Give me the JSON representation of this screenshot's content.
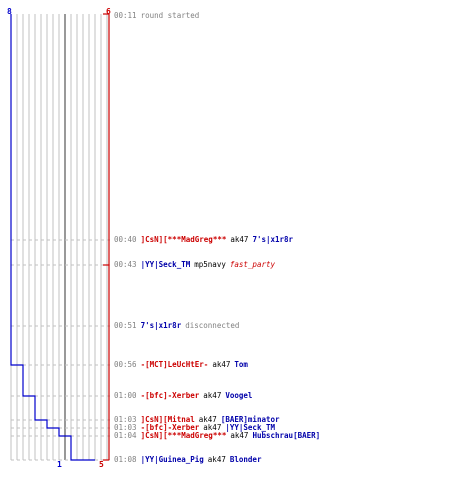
{
  "colors": {
    "team_blue": "#0000cc",
    "team_red": "#cc0000",
    "grid": "#c0c0c0",
    "guide": "#999999",
    "time": "#808080"
  },
  "scores": {
    "blue_start": "8",
    "red_start": "6",
    "blue_end": "1",
    "red_end": "5"
  },
  "events": [
    {
      "time": "00:11",
      "parts": [
        {
          "text": "round started",
          "color": "gray"
        }
      ]
    },
    {
      "time": "00:40",
      "parts": [
        {
          "text": "]CsN][***MadGreg***",
          "color": "red"
        },
        {
          "text": "ak47",
          "color": "black"
        },
        {
          "text": "7's|x1r8r",
          "color": "blue"
        }
      ]
    },
    {
      "time": "00:43",
      "parts": [
        {
          "text": "|YY|Seck_TM",
          "color": "blue"
        },
        {
          "text": "mp5navy",
          "color": "black"
        },
        {
          "text": "fast_party",
          "color": "redi"
        }
      ]
    },
    {
      "time": "00:51",
      "parts": [
        {
          "text": "7's|x1r8r",
          "color": "blue"
        },
        {
          "text": "disconnected",
          "color": "gray"
        }
      ]
    },
    {
      "time": "00:56",
      "parts": [
        {
          "text": "-[MCT]LeUcHtEr-",
          "color": "red"
        },
        {
          "text": "ak47",
          "color": "black"
        },
        {
          "text": "Tom",
          "color": "blue"
        }
      ]
    },
    {
      "time": "01:00",
      "parts": [
        {
          "text": "-[bfc]-Xerber",
          "color": "red"
        },
        {
          "text": "ak47",
          "color": "black"
        },
        {
          "text": "Voogel",
          "color": "blue"
        }
      ]
    },
    {
      "time": "01:03",
      "parts": [
        {
          "text": "]CsN][Mitnal",
          "color": "red"
        },
        {
          "text": "ak47",
          "color": "black"
        },
        {
          "text": "[BAER]minator",
          "color": "blue"
        }
      ]
    },
    {
      "time": "01:03",
      "parts": [
        {
          "text": "-[bfc]-Xerber",
          "color": "red"
        },
        {
          "text": "ak47",
          "color": "black"
        },
        {
          "text": "|YY|Seck_TM",
          "color": "blue"
        }
      ]
    },
    {
      "time": "01:04",
      "parts": [
        {
          "text": "]CsN][***MadGreg***",
          "color": "red"
        },
        {
          "text": "ak47",
          "color": "black"
        },
        {
          "text": "Hubschrau[BAER]",
          "color": "blue"
        }
      ]
    },
    {
      "time": "01:08",
      "parts": [
        {
          "text": "|YY|Guinea_Pig",
          "color": "blue"
        },
        {
          "text": "ak47",
          "color": "black"
        },
        {
          "text": "Blonder",
          "color": "blue"
        }
      ]
    }
  ],
  "chart_data": {
    "type": "line",
    "x_range": [
      0,
      8
    ],
    "series": [
      {
        "team": "blue",
        "start": 8,
        "values": [
          8,
          8,
          8,
          8,
          7,
          6,
          5,
          4,
          3,
          1
        ]
      },
      {
        "team": "red",
        "start": 6,
        "values": [
          6,
          6,
          5,
          5,
          5,
          5,
          5,
          5,
          5,
          5
        ]
      }
    ]
  }
}
